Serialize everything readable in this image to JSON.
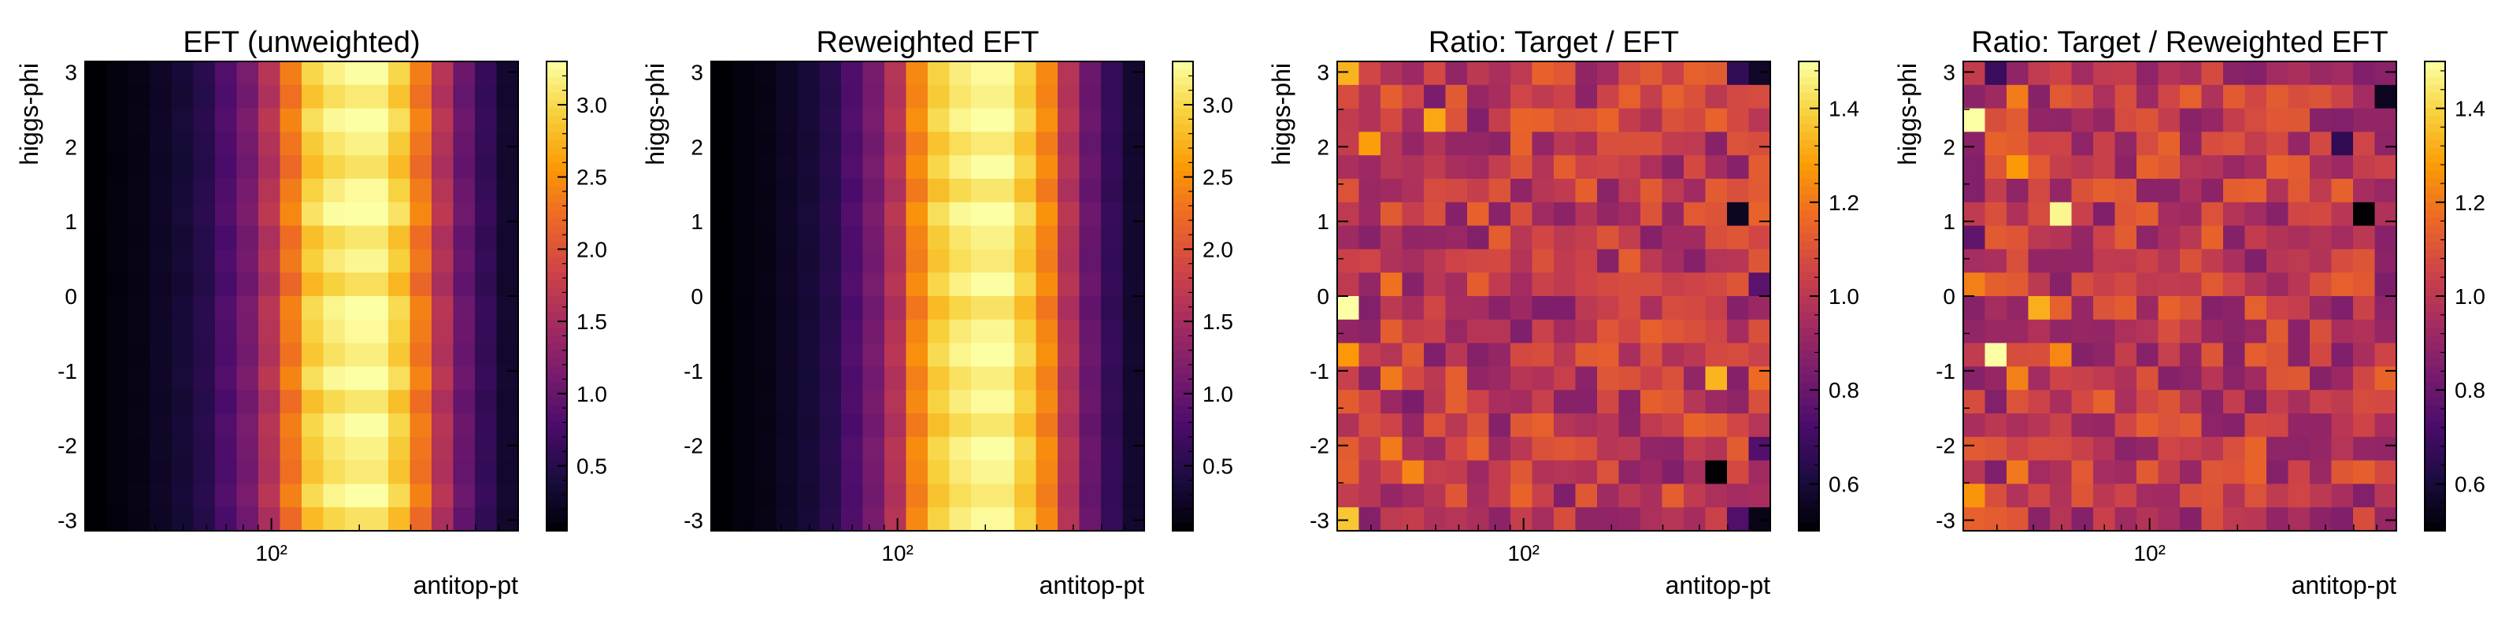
{
  "figure": {
    "colormap": [
      "#000004",
      "#1b0c41",
      "#4a0c6b",
      "#781c6d",
      "#a52c60",
      "#cf4446",
      "#ed6925",
      "#fb9b06",
      "#f7d13d",
      "#fcffa4"
    ]
  },
  "chart_data": [
    {
      "type": "heatmap",
      "title": "EFT (unweighted)",
      "xlabel": "antitop-pt",
      "ylabel": "higgs-phi",
      "xscale": "log",
      "xlim": [
        23,
        700
      ],
      "x_tick_labels": [
        "10²"
      ],
      "x_tick_values": [
        100
      ],
      "ylim": [
        -3.1416,
        3.1416
      ],
      "y_tick_labels": [
        "3",
        "2",
        "1",
        "0",
        "-1",
        "-2",
        "-3"
      ],
      "y_tick_values": [
        3,
        2,
        1,
        0,
        -1,
        -2,
        -3
      ],
      "colorbar": {
        "range": [
          0.05,
          3.3
        ],
        "tick_labels": [
          "0.5",
          "1.0",
          "1.5",
          "2.0",
          "2.5",
          "3.0"
        ],
        "tick_values": [
          0.5,
          1.0,
          1.5,
          2.0,
          2.5,
          3.0
        ]
      },
      "columns": 20,
      "rows": 20,
      "column_profile": [
        0.05,
        0.1,
        0.15,
        0.25,
        0.35,
        0.5,
        0.8,
        1.1,
        1.6,
        2.3,
        2.9,
        3.1,
        3.2,
        3.2,
        2.9,
        2.3,
        1.6,
        1.0,
        0.6,
        0.3
      ],
      "row_variation": [
        0.03,
        -0.02,
        0.05,
        0.0,
        -0.04,
        0.02,
        0.06,
        -0.03,
        0.01,
        -0.05,
        0.04,
        0.02,
        -0.01,
        0.05,
        -0.03,
        0.03,
        0.0,
        -0.02,
        0.04,
        -0.04
      ]
    },
    {
      "type": "heatmap",
      "title": "Reweighted EFT",
      "xlabel": "antitop-pt",
      "ylabel": "higgs-phi",
      "xscale": "log",
      "xlim": [
        23,
        700
      ],
      "x_tick_labels": [
        "10²"
      ],
      "x_tick_values": [
        100
      ],
      "ylim": [
        -3.1416,
        3.1416
      ],
      "y_tick_labels": [
        "3",
        "2",
        "1",
        "0",
        "-1",
        "-2",
        "-3"
      ],
      "y_tick_values": [
        3,
        2,
        1,
        0,
        -1,
        -2,
        -3
      ],
      "colorbar": {
        "range": [
          0.05,
          3.3
        ],
        "tick_labels": [
          "0.5",
          "1.0",
          "1.5",
          "2.0",
          "2.5",
          "3.0"
        ],
        "tick_values": [
          0.5,
          1.0,
          1.5,
          2.0,
          2.5,
          3.0
        ]
      },
      "columns": 20,
      "rows": 20,
      "column_profile": [
        0.05,
        0.1,
        0.15,
        0.25,
        0.35,
        0.5,
        0.8,
        1.1,
        1.6,
        2.4,
        2.9,
        3.1,
        3.2,
        3.2,
        2.9,
        2.4,
        1.6,
        1.0,
        0.6,
        0.3
      ],
      "row_variation": [
        0.02,
        0.0,
        0.04,
        -0.02,
        0.03,
        -0.03,
        0.05,
        0.0,
        -0.02,
        0.03,
        -0.04,
        0.01,
        0.04,
        -0.01,
        0.02,
        -0.03,
        0.03,
        0.01,
        -0.02,
        0.02
      ]
    },
    {
      "type": "heatmap",
      "title": "Ratio: Target / EFT",
      "xlabel": "antitop-pt",
      "ylabel": "higgs-phi",
      "xscale": "log",
      "xlim": [
        23,
        700
      ],
      "x_tick_labels": [
        "10²"
      ],
      "x_tick_values": [
        100
      ],
      "ylim": [
        -3.1416,
        3.1416
      ],
      "y_tick_labels": [
        "3",
        "2",
        "1",
        "0",
        "-1",
        "-2",
        "-3"
      ],
      "y_tick_values": [
        3,
        2,
        1,
        0,
        -1,
        -2,
        -3
      ],
      "colorbar": {
        "range": [
          0.5,
          1.5
        ],
        "tick_labels": [
          "0.6",
          "0.8",
          "1.0",
          "1.2",
          "1.4"
        ],
        "tick_values": [
          0.6,
          0.8,
          1.0,
          1.2,
          1.4
        ]
      },
      "columns": 20,
      "rows": 20,
      "base_value": 1.0,
      "seed": 7
    },
    {
      "type": "heatmap",
      "title": "Ratio: Target / Reweighted EFT",
      "xlabel": "antitop-pt",
      "ylabel": "higgs-phi",
      "xscale": "log",
      "xlim": [
        23,
        700
      ],
      "x_tick_labels": [
        "10²"
      ],
      "x_tick_values": [
        100
      ],
      "ylim": [
        -3.1416,
        3.1416
      ],
      "y_tick_labels": [
        "3",
        "2",
        "1",
        "0",
        "-1",
        "-2",
        "-3"
      ],
      "y_tick_values": [
        3,
        2,
        1,
        0,
        -1,
        -2,
        -3
      ],
      "colorbar": {
        "range": [
          0.5,
          1.5
        ],
        "tick_labels": [
          "0.6",
          "0.8",
          "1.0",
          "1.2",
          "1.4"
        ],
        "tick_values": [
          0.6,
          0.8,
          1.0,
          1.2,
          1.4
        ]
      },
      "columns": 20,
      "rows": 20,
      "base_value": 1.0,
      "seed": 13
    }
  ]
}
